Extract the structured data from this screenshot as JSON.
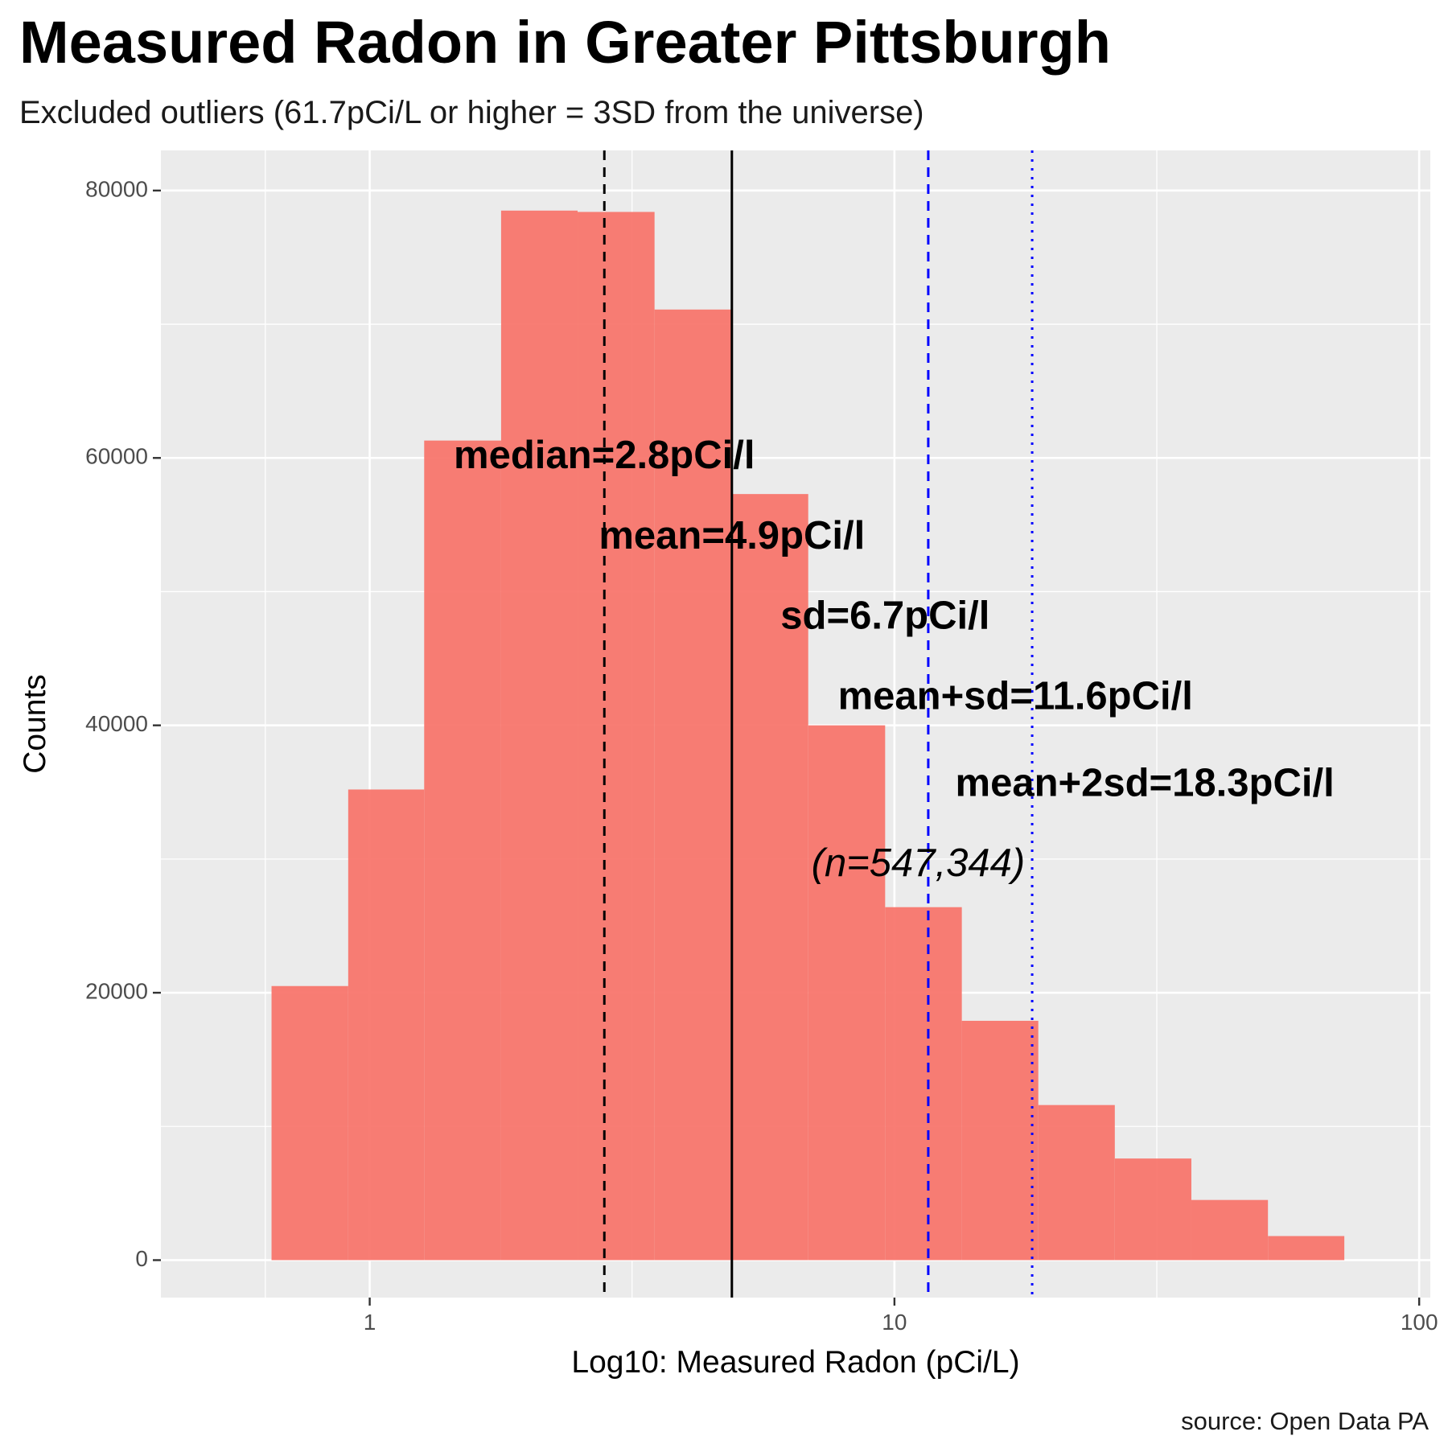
{
  "chart_data": {
    "type": "bar",
    "title": "Measured Radon in Greater Pittsburgh",
    "subtitle": "Excluded outliers (61.7pCi/L or higher = 3SD from the universe)",
    "caption": "source: Open Data PA",
    "xlabel": "Log10: Measured Radon (pCi/L)",
    "ylabel": "Counts",
    "x_scale": "log10",
    "xlim": [
      0.4,
      105
    ],
    "ylim": [
      -2800,
      83000
    ],
    "x_ticks": [
      {
        "value": 1,
        "label": "1"
      },
      {
        "value": 10,
        "label": "10"
      },
      {
        "value": 100,
        "label": "100"
      }
    ],
    "y_ticks": [
      {
        "value": 0,
        "label": "0"
      },
      {
        "value": 20000,
        "label": "20000"
      },
      {
        "value": 40000,
        "label": "40000"
      },
      {
        "value": 60000,
        "label": "60000"
      },
      {
        "value": 80000,
        "label": "80000"
      }
    ],
    "grid": true,
    "bar_color": "#F8766D",
    "bins": [
      {
        "x0": 0.65,
        "x1": 0.91,
        "count": 20500
      },
      {
        "x0": 0.91,
        "x1": 1.27,
        "count": 35200
      },
      {
        "x0": 1.27,
        "x1": 1.78,
        "count": 61300
      },
      {
        "x0": 1.78,
        "x1": 2.49,
        "count": 78500
      },
      {
        "x0": 2.49,
        "x1": 3.49,
        "count": 78400
      },
      {
        "x0": 3.49,
        "x1": 4.89,
        "count": 71100
      },
      {
        "x0": 4.89,
        "x1": 6.85,
        "count": 57300
      },
      {
        "x0": 6.85,
        "x1": 9.6,
        "count": 40000
      },
      {
        "x0": 9.6,
        "x1": 13.44,
        "count": 26400
      },
      {
        "x0": 13.44,
        "x1": 18.8,
        "count": 17900
      },
      {
        "x0": 18.8,
        "x1": 26.3,
        "count": 11600
      },
      {
        "x0": 26.3,
        "x1": 36.8,
        "count": 7600
      },
      {
        "x0": 36.8,
        "x1": 51.5,
        "count": 4500
      },
      {
        "x0": 51.5,
        "x1": 72.0,
        "count": 1800
      }
    ],
    "reference_lines": [
      {
        "name": "median",
        "value": 2.8,
        "color": "#000000",
        "style": "dashed"
      },
      {
        "name": "mean",
        "value": 4.9,
        "color": "#000000",
        "style": "solid"
      },
      {
        "name": "mean+sd",
        "value": 11.6,
        "color": "#0000ff",
        "style": "dashed"
      },
      {
        "name": "mean+2sd",
        "value": 18.3,
        "color": "#0000ff",
        "style": "dotted"
      }
    ],
    "annotations": [
      {
        "text": "median=2.8pCi/l",
        "x": 2.8,
        "y": 60000,
        "italic": false
      },
      {
        "text": "mean=4.9pCi/l",
        "x": 4.9,
        "y": 54000,
        "italic": false
      },
      {
        "text": "sd=6.7pCi/l",
        "x": 9.6,
        "y": 48000,
        "italic": false
      },
      {
        "text": "mean+sd=11.6pCi/l",
        "x": 17.0,
        "y": 42000,
        "italic": false
      },
      {
        "text": "mean+2sd=18.3pCi/l",
        "x": 30.0,
        "y": 35500,
        "italic": false
      },
      {
        "text": "(n=547,344)",
        "x": 11.1,
        "y": 29500,
        "italic": true
      }
    ]
  }
}
